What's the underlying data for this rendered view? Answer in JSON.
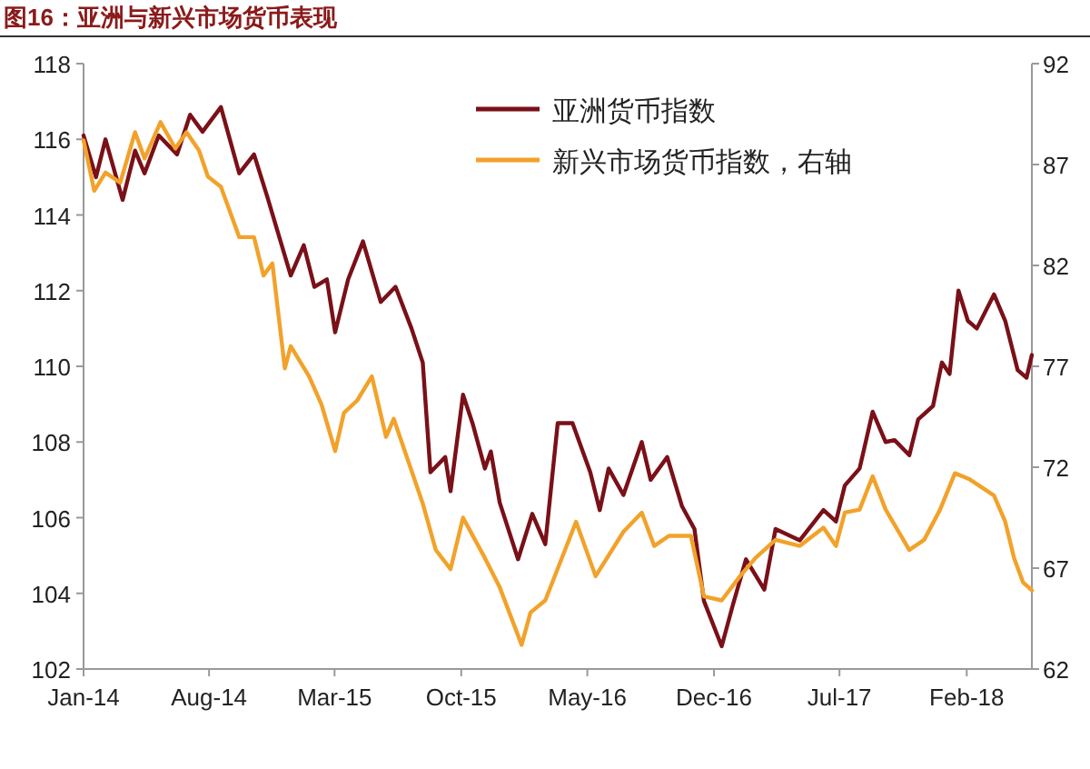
{
  "chart_data": {
    "type": "line",
    "title": "图16：亚洲与新兴市场货币表现",
    "legend": "top right",
    "grid": false,
    "marker": "none",
    "line_style": "solid",
    "xlim": [
      "2014-01-01",
      "2018-05-22"
    ],
    "xticks": [
      {
        "value": "2014-01-01",
        "label": "Jan-14"
      },
      {
        "value": "2014-08-01",
        "label": "Aug-14"
      },
      {
        "value": "2015-03-01",
        "label": "Mar-15"
      },
      {
        "value": "2015-10-01",
        "label": "Oct-15"
      },
      {
        "value": "2016-05-01",
        "label": "May-16"
      },
      {
        "value": "2016-12-01",
        "label": "Dec-16"
      },
      {
        "value": "2017-07-01",
        "label": "Jul-17"
      },
      {
        "value": "2018-02-01",
        "label": "Feb-18"
      }
    ],
    "ylim": [
      102,
      118
    ],
    "yticks": [
      102,
      104,
      106,
      108,
      110,
      112,
      114,
      116,
      118
    ],
    "y2lim": [
      62,
      92
    ],
    "y2ticks": [
      62,
      67,
      72,
      77,
      82,
      87,
      92
    ],
    "series": [
      {
        "name": "亚洲货币指数",
        "color": "#7a1018",
        "x": [
          "2014-01-01",
          "2014-01-22",
          "2014-02-07",
          "2014-03-08",
          "2014-03-29",
          "2014-04-14",
          "2014-05-08",
          "2014-06-08",
          "2014-06-30",
          "2014-07-21",
          "2014-08-21",
          "2014-09-21",
          "2014-10-16",
          "2014-11-07",
          "2014-12-17",
          "2015-01-08",
          "2015-01-26",
          "2015-02-16",
          "2015-03-02",
          "2015-03-24",
          "2015-04-18",
          "2015-05-18",
          "2015-06-12",
          "2015-07-09",
          "2015-07-28",
          "2015-08-10",
          "2015-09-04",
          "2015-09-13",
          "2015-10-04",
          "2015-10-20",
          "2015-11-10",
          "2015-11-20",
          "2015-12-05",
          "2016-01-05",
          "2016-01-29",
          "2016-02-20",
          "2016-03-12",
          "2016-04-06",
          "2016-05-06",
          "2016-05-22",
          "2016-06-06",
          "2016-07-01",
          "2016-08-01",
          "2016-08-16",
          "2016-09-13",
          "2016-10-08",
          "2016-10-29",
          "2016-11-14",
          "2016-12-14",
          "2017-01-02",
          "2017-01-24",
          "2017-02-24",
          "2017-03-15",
          "2017-04-25",
          "2017-06-04",
          "2017-06-25",
          "2017-07-10",
          "2017-08-04",
          "2017-08-26",
          "2017-09-17",
          "2017-10-02",
          "2017-10-27",
          "2017-11-11",
          "2017-12-06",
          "2017-12-21",
          "2018-01-03",
          "2018-01-18",
          "2018-02-03",
          "2018-02-18",
          "2018-03-19",
          "2018-04-07",
          "2018-04-28",
          "2018-05-13",
          "2018-05-22"
        ],
        "values": [
          116.1,
          115.0,
          116.0,
          114.4,
          115.7,
          115.1,
          116.1,
          115.6,
          116.65,
          116.2,
          116.85,
          115.1,
          115.6,
          114.5,
          112.4,
          113.2,
          112.1,
          112.3,
          110.9,
          112.3,
          113.3,
          111.7,
          112.1,
          111.0,
          110.1,
          107.2,
          107.6,
          106.7,
          109.25,
          108.5,
          107.3,
          107.75,
          106.4,
          104.9,
          106.1,
          105.3,
          108.5,
          108.5,
          107.2,
          106.2,
          107.3,
          106.6,
          108.0,
          107.0,
          107.6,
          106.3,
          105.7,
          103.8,
          102.6,
          103.7,
          104.9,
          104.1,
          105.7,
          105.4,
          106.2,
          105.9,
          106.85,
          107.3,
          108.8,
          108.0,
          108.05,
          107.65,
          108.6,
          108.95,
          110.1,
          109.8,
          112.0,
          111.2,
          111.0,
          111.9,
          111.2,
          109.9,
          109.7,
          110.3
        ]
      },
      {
        "name": "新兴市场货币指数，右轴",
        "color": "#f2a22a",
        "axis": "y2",
        "x": [
          "2014-01-01",
          "2014-01-19",
          "2014-02-07",
          "2014-03-04",
          "2014-03-29",
          "2014-04-14",
          "2014-05-11",
          "2014-06-05",
          "2014-06-24",
          "2014-07-15",
          "2014-07-30",
          "2014-08-21",
          "2014-09-21",
          "2014-10-16",
          "2014-11-01",
          "2014-11-16",
          "2014-12-07",
          "2014-12-17",
          "2015-01-17",
          "2015-02-07",
          "2015-03-02",
          "2015-03-17",
          "2015-04-08",
          "2015-05-03",
          "2015-05-27",
          "2015-06-09",
          "2015-07-28",
          "2015-08-19",
          "2015-09-13",
          "2015-10-04",
          "2015-11-10",
          "2015-12-05",
          "2016-01-11",
          "2016-01-26",
          "2016-02-20",
          "2016-04-12",
          "2016-05-15",
          "2016-07-01",
          "2016-08-01",
          "2016-08-22",
          "2016-09-16",
          "2016-10-23",
          "2016-11-14",
          "2016-12-14",
          "2017-01-14",
          "2017-02-09",
          "2017-03-15",
          "2017-04-25",
          "2017-06-04",
          "2017-06-25",
          "2017-07-10",
          "2017-08-04",
          "2017-08-26",
          "2017-09-17",
          "2017-10-27",
          "2017-11-21",
          "2017-12-18",
          "2018-01-12",
          "2018-02-06",
          "2018-03-19",
          "2018-04-07",
          "2018-04-22",
          "2018-05-07",
          "2018-05-22"
        ],
        "values": [
          88.2,
          85.7,
          86.6,
          86.1,
          88.6,
          87.3,
          89.1,
          87.8,
          88.6,
          87.7,
          86.4,
          85.9,
          83.4,
          83.4,
          81.5,
          82.1,
          76.9,
          78.0,
          76.5,
          75.1,
          72.8,
          74.7,
          75.3,
          76.5,
          73.5,
          74.4,
          70.2,
          67.9,
          66.95,
          69.5,
          67.5,
          66.05,
          63.2,
          64.8,
          65.4,
          69.3,
          66.6,
          68.8,
          69.75,
          68.1,
          68.6,
          68.6,
          65.6,
          65.4,
          66.6,
          67.5,
          68.4,
          68.1,
          69.0,
          68.1,
          69.75,
          69.9,
          71.55,
          69.9,
          67.9,
          68.4,
          69.9,
          71.7,
          71.4,
          70.6,
          69.3,
          67.5,
          66.3,
          65.9
        ]
      }
    ]
  }
}
